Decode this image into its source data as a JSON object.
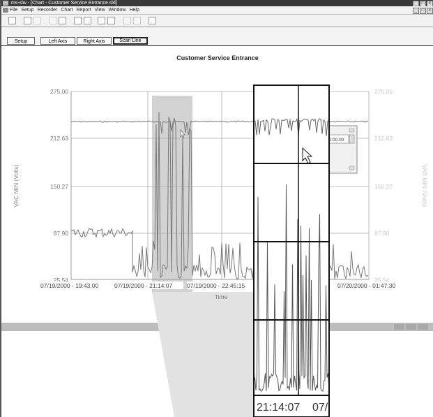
{
  "window": {
    "title": "ms-slw - [Chart - Customer Service Entrance.sld]",
    "controls": [
      "_",
      "□",
      "x"
    ]
  },
  "menu": [
    "File",
    "Setup",
    "Recorder",
    "Chart",
    "Report",
    "View",
    "Window",
    "Help"
  ],
  "toolbar_icons": [
    "new-icon",
    "print-icon",
    "print-preview-icon",
    "copy-icon",
    "find-icon",
    "zoom-in-icon",
    "zoom-out-icon",
    "chart-icon",
    "data-icon",
    "undo-icon",
    "redo-icon",
    "help-icon"
  ],
  "tabs": [
    {
      "label": "Setup",
      "active": false
    },
    {
      "label": "Left Axis",
      "active": false
    },
    {
      "label": "Right Axis",
      "active": false
    },
    {
      "label": "Scan Line",
      "active": true
    }
  ],
  "scan_box_value": "52:00.00",
  "zoom_time_label": "21:14:07",
  "zoom_time_label_cut": "07/",
  "colors": {
    "trace": "#777777",
    "grid": "#aaaaaa",
    "selection": "#d2d2d2",
    "right_axis": "#c8c8c8"
  },
  "chart_data": {
    "type": "line",
    "title": "Customer Service Entrance",
    "xlabel": "Time",
    "ylabel_left": "VAC MIN (Volts)",
    "ylabel_right": "VAB MIN (Volts)",
    "left_ticks": [
      "275.00",
      "212.63",
      "150.27",
      "87.90",
      "25.54"
    ],
    "right_ticks": [
      "275.00",
      "212.63",
      "150.27",
      "87.90",
      "25.54"
    ],
    "x_ticks": [
      "07/19/2000 - 19:43.00",
      "07/19/2000 - 21:14:07",
      "07/19/2000 - 22:45:15",
      "07/20/2000 - 01:47:30"
    ],
    "ylim": [
      25.54,
      275.0
    ],
    "grid": true,
    "selection_range": [
      "07/19/2000 - 21:14:07",
      "07/19/2000 - 21:44"
    ],
    "series": [
      {
        "upper_trace_level": 235,
        "before_drop_level": 87.9,
        "after_drop_level": 35
      }
    ]
  }
}
